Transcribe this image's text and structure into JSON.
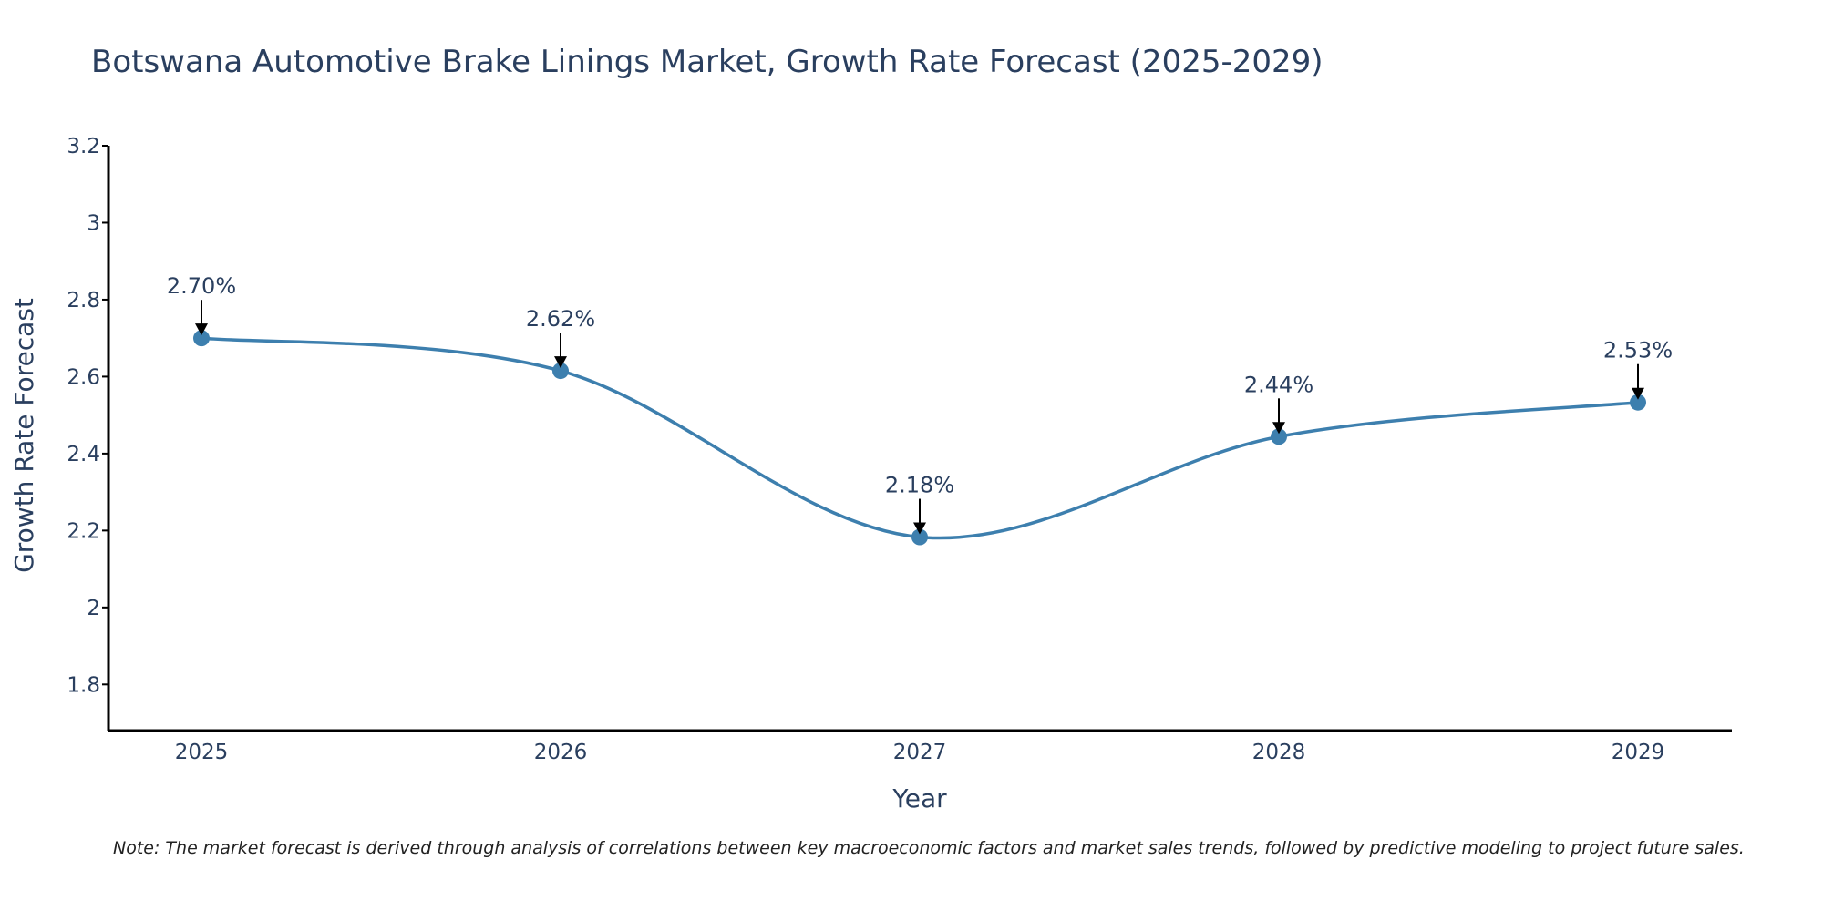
{
  "chart_data": {
    "type": "line",
    "title": "Botswana Automotive Brake Linings Market, Growth Rate Forecast (2025-2029)",
    "xlabel": "Year",
    "ylabel": "Growth Rate Forecast",
    "categories": [
      "2025",
      "2026",
      "2027",
      "2028",
      "2029"
    ],
    "values": [
      2.7,
      2.615,
      2.183,
      2.444,
      2.533
    ],
    "data_labels": [
      "2.70%",
      "2.62%",
      "2.18%",
      "2.44%",
      "2.53%"
    ],
    "y_ticks": [
      1.8,
      2,
      2.2,
      2.4,
      2.6,
      2.8,
      3,
      3.2
    ],
    "y_tick_labels": [
      "1.8",
      "2",
      "2.2",
      "2.4",
      "2.6",
      "2.8",
      "3",
      "3.2"
    ],
    "ylim": [
      1.68,
      3.2
    ],
    "line_color": "#3d7fae",
    "grid": false,
    "note": "Note: The market forecast is derived through analysis of correlations between key macroeconomic factors and market sales trends, followed by predictive modeling to project future sales."
  }
}
